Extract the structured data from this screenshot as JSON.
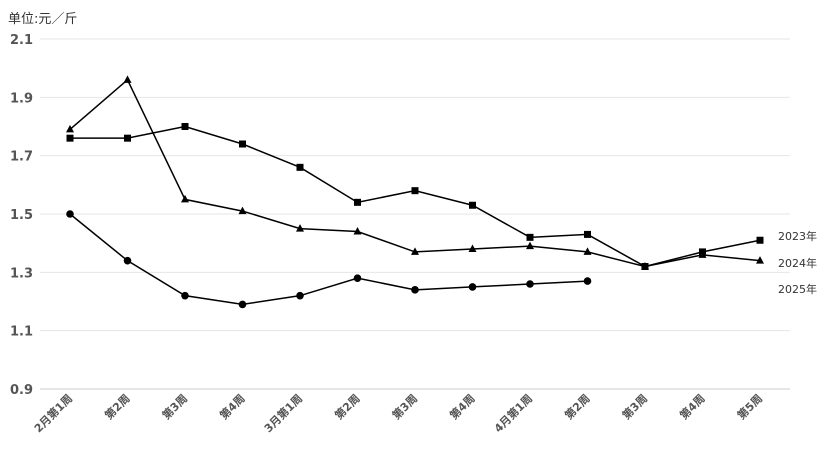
{
  "chart_data": {
    "type": "line",
    "unit_label": "单位:元／斤",
    "categories": [
      "2月第1周",
      "第2周",
      "第3周",
      "第4周",
      "3月第1周",
      "第2周",
      "第3周",
      "第4周",
      "4月第1周",
      "第2周",
      "第3周",
      "第4周",
      "第5周"
    ],
    "ylim": [
      0.9,
      2.1
    ],
    "yticks": [
      "2.1",
      "1.9",
      "1.7",
      "1.5",
      "1.3",
      "1.1",
      "0.9"
    ],
    "grid": true,
    "series": [
      {
        "name": "2023年",
        "marker": "square",
        "values": [
          1.76,
          1.76,
          1.8,
          1.74,
          1.66,
          1.54,
          1.58,
          1.53,
          1.42,
          1.43,
          1.32,
          1.37,
          1.41
        ]
      },
      {
        "name": "2024年",
        "marker": "triangle",
        "values": [
          1.79,
          1.96,
          1.55,
          1.51,
          1.45,
          1.44,
          1.37,
          1.38,
          1.39,
          1.37,
          1.32,
          1.36,
          1.34
        ]
      },
      {
        "name": "2025年",
        "marker": "circle",
        "values": [
          1.5,
          1.34,
          1.22,
          1.19,
          1.22,
          1.28,
          1.24,
          1.25,
          1.26,
          1.27,
          null,
          null,
          null
        ]
      }
    ],
    "colors": {
      "line": "#000000",
      "grid": "#e6e6e6",
      "axis": "#cccccc"
    }
  }
}
